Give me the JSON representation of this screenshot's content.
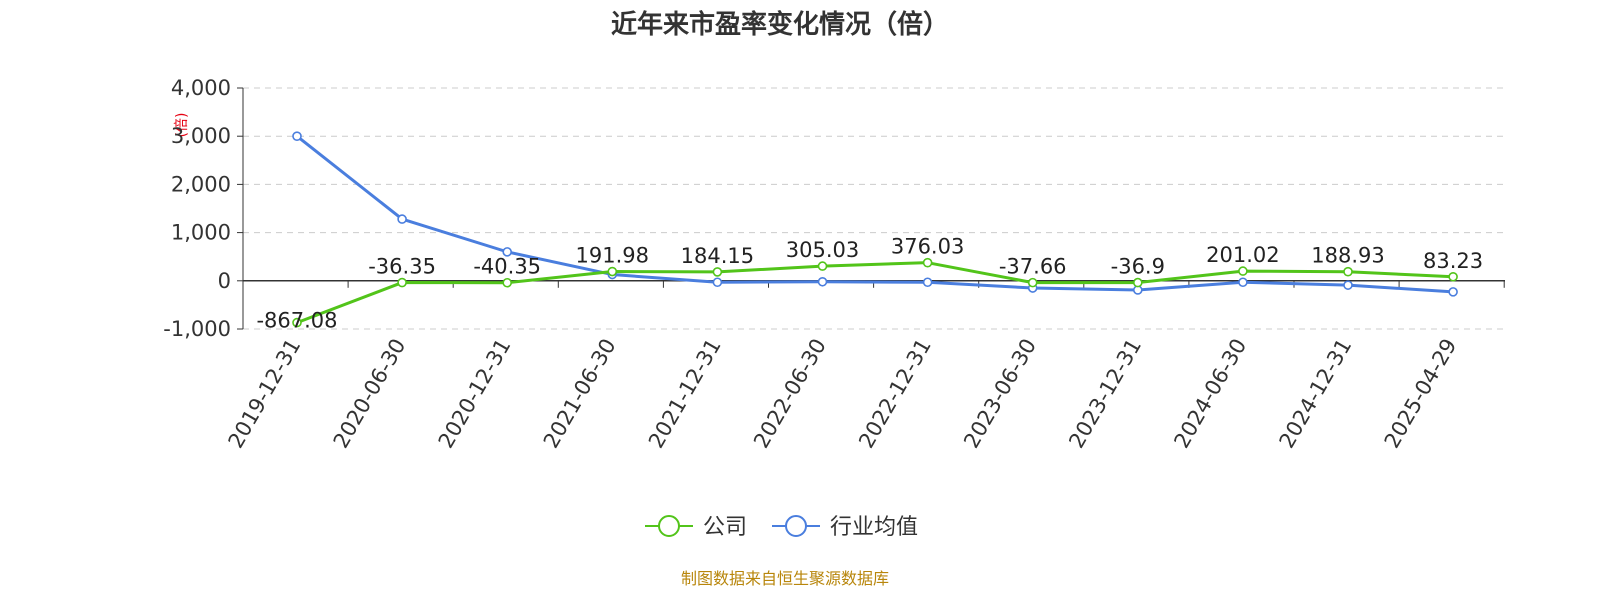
{
  "chart_data": {
    "type": "line",
    "title": "近年来市盈率变化情况（倍）",
    "unit_label": "(倍)",
    "categories": [
      "2019-12-31",
      "2020-06-30",
      "2020-12-31",
      "2021-06-30",
      "2021-12-31",
      "2022-06-30",
      "2022-12-31",
      "2023-06-30",
      "2023-12-31",
      "2024-06-30",
      "2024-12-31",
      "2025-04-29"
    ],
    "series": [
      {
        "name": "公司",
        "color": "#52c41a",
        "values": [
          -867.08,
          -36.35,
          -40.35,
          191.98,
          184.15,
          305.03,
          376.03,
          -37.66,
          -36.9,
          201.02,
          188.93,
          83.23
        ],
        "labels": [
          "-867.08",
          "-36.35",
          "-40.35",
          "191.98",
          "184.15",
          "305.03",
          "376.03",
          "-37.66",
          "-36.9",
          "201.02",
          "188.93",
          "83.23"
        ]
      },
      {
        "name": "行业均值",
        "color": "#4a7ede",
        "values": [
          3000,
          1280,
          600,
          130,
          -30,
          -20,
          -30,
          -150,
          -190,
          -30,
          -90,
          -230
        ]
      }
    ],
    "ylim": [
      -1000,
      4000
    ],
    "yticks": [
      -1000,
      0,
      1000,
      2000,
      3000,
      4000
    ],
    "ytick_labels": [
      "-1,000",
      "0",
      "1,000",
      "2,000",
      "3,000",
      "4,000"
    ],
    "grid": true,
    "legend_position": "bottom"
  },
  "source": "制图数据来自恒生聚源数据库"
}
